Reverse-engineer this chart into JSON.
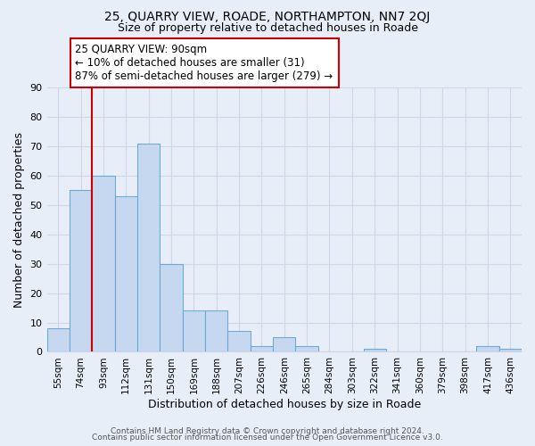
{
  "title1": "25, QUARRY VIEW, ROADE, NORTHAMPTON, NN7 2QJ",
  "title2": "Size of property relative to detached houses in Roade",
  "xlabel": "Distribution of detached houses by size in Roade",
  "ylabel": "Number of detached properties",
  "bar_labels": [
    "55sqm",
    "74sqm",
    "93sqm",
    "112sqm",
    "131sqm",
    "150sqm",
    "169sqm",
    "188sqm",
    "207sqm",
    "226sqm",
    "246sqm",
    "265sqm",
    "284sqm",
    "303sqm",
    "322sqm",
    "341sqm",
    "360sqm",
    "379sqm",
    "398sqm",
    "417sqm",
    "436sqm"
  ],
  "bar_values": [
    8,
    55,
    60,
    53,
    71,
    30,
    14,
    14,
    7,
    2,
    5,
    2,
    0,
    0,
    1,
    0,
    0,
    0,
    0,
    2,
    1
  ],
  "bar_color": "#c5d8f0",
  "bar_edge_color": "#6aaad4",
  "vline_x_idx": 1.5,
  "annotation_title": "25 QUARRY VIEW: 90sqm",
  "annotation_line1": "← 10% of detached houses are smaller (31)",
  "annotation_line2": "87% of semi-detached houses are larger (279) →",
  "annotation_box_color": "#ffffff",
  "annotation_box_edge": "#cc0000",
  "vline_color": "#cc0000",
  "ylim": [
    0,
    90
  ],
  "yticks": [
    0,
    10,
    20,
    30,
    40,
    50,
    60,
    70,
    80,
    90
  ],
  "footer1": "Contains HM Land Registry data © Crown copyright and database right 2024.",
  "footer2": "Contains public sector information licensed under the Open Government Licence v3.0.",
  "bg_color": "#e8eef8",
  "grid_color": "#d0d8e8",
  "title1_fontsize": 10,
  "title2_fontsize": 9
}
